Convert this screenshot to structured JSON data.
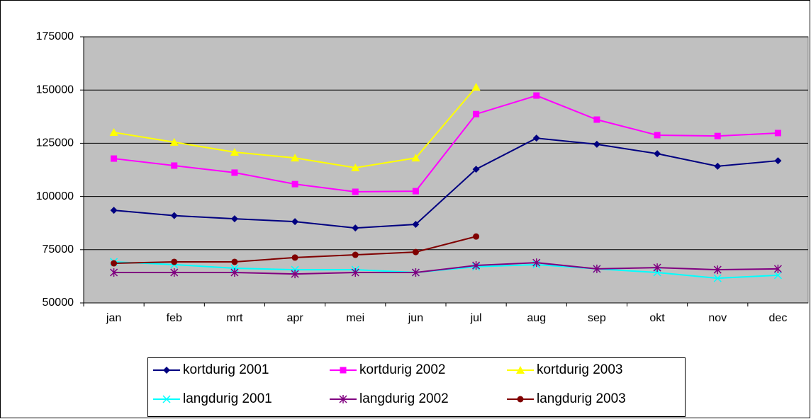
{
  "chart_data": {
    "type": "line",
    "categories": [
      "jan",
      "feb",
      "mrt",
      "apr",
      "mei",
      "jun",
      "jul",
      "aug",
      "sep",
      "okt",
      "nov",
      "dec"
    ],
    "series": [
      {
        "name": "kortdurig 2001",
        "color": "#000080",
        "marker": "diamond",
        "values": [
          93500,
          91000,
          89500,
          88200,
          85200,
          86900,
          112800,
          127400,
          124500,
          120100,
          114200,
          116800
        ]
      },
      {
        "name": "kortdurig 2002",
        "color": "#ff00ff",
        "marker": "square",
        "values": [
          117800,
          114500,
          111200,
          105800,
          102200,
          102500,
          138700,
          147400,
          136100,
          128800,
          128400,
          129800
        ]
      },
      {
        "name": "kortdurig 2003",
        "color": "#ffff00",
        "marker": "triangle",
        "values": [
          130100,
          125500,
          120800,
          118100,
          113500,
          118100,
          151400,
          null,
          null,
          null,
          null,
          null
        ]
      },
      {
        "name": "langdurig 2001",
        "color": "#00ffff",
        "marker": "x",
        "values": [
          69300,
          68000,
          66300,
          65600,
          65600,
          64300,
          67000,
          68000,
          66000,
          64300,
          61600,
          63000
        ]
      },
      {
        "name": "langdurig 2002",
        "color": "#800080",
        "marker": "star",
        "values": [
          64300,
          64300,
          64300,
          63600,
          64300,
          64300,
          67600,
          68900,
          66000,
          66600,
          65600,
          66000
        ]
      },
      {
        "name": "langdurig 2003",
        "color": "#800000",
        "marker": "circle",
        "values": [
          68600,
          69300,
          69300,
          71300,
          72600,
          73900,
          81200,
          null,
          null,
          null,
          null,
          null
        ]
      }
    ],
    "ylim": [
      50000,
      175000
    ],
    "yticks": [
      50000,
      75000,
      100000,
      125000,
      150000,
      175000
    ],
    "grid": true,
    "legend": "bottom"
  }
}
